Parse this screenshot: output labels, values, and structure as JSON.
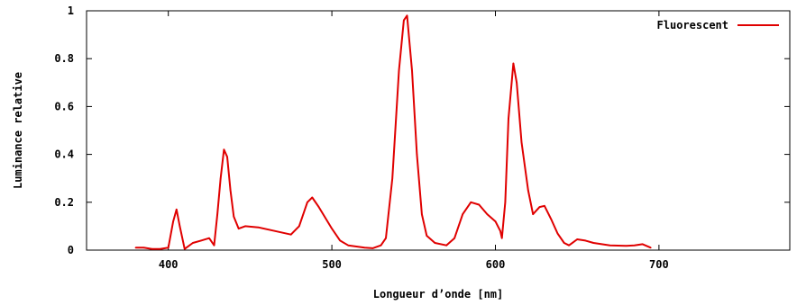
{
  "chart_data": {
    "type": "line",
    "title": "",
    "xlabel": "Longueur d’onde [nm]",
    "ylabel": "Luminance relative",
    "xlim": [
      350,
      780
    ],
    "ylim": [
      0,
      1
    ],
    "x_ticks": [
      400,
      500,
      600,
      700
    ],
    "y_ticks": [
      0,
      0.2,
      0.4,
      0.6,
      0.8,
      1
    ],
    "y_tick_labels": [
      "0",
      "0.2",
      "0.4",
      "0.6",
      "0.8",
      "1"
    ],
    "grid": false,
    "legend_position": "top-right",
    "series": [
      {
        "name": "Fluorescent",
        "color": "#e00000",
        "points": [
          [
            380,
            0.01
          ],
          [
            385,
            0.01
          ],
          [
            390,
            0.005
          ],
          [
            395,
            0.005
          ],
          [
            400,
            0.01
          ],
          [
            403,
            0.12
          ],
          [
            405,
            0.17
          ],
          [
            407,
            0.1
          ],
          [
            410,
            0.005
          ],
          [
            415,
            0.03
          ],
          [
            420,
            0.04
          ],
          [
            425,
            0.05
          ],
          [
            428,
            0.02
          ],
          [
            430,
            0.15
          ],
          [
            432,
            0.3
          ],
          [
            434,
            0.42
          ],
          [
            436,
            0.39
          ],
          [
            438,
            0.25
          ],
          [
            440,
            0.14
          ],
          [
            443,
            0.09
          ],
          [
            447,
            0.1
          ],
          [
            455,
            0.095
          ],
          [
            465,
            0.08
          ],
          [
            475,
            0.065
          ],
          [
            480,
            0.1
          ],
          [
            485,
            0.2
          ],
          [
            488,
            0.22
          ],
          [
            492,
            0.18
          ],
          [
            500,
            0.09
          ],
          [
            505,
            0.04
          ],
          [
            510,
            0.02
          ],
          [
            520,
            0.01
          ],
          [
            525,
            0.008
          ],
          [
            530,
            0.02
          ],
          [
            533,
            0.05
          ],
          [
            537,
            0.3
          ],
          [
            541,
            0.75
          ],
          [
            544,
            0.96
          ],
          [
            546,
            0.98
          ],
          [
            549,
            0.75
          ],
          [
            552,
            0.4
          ],
          [
            555,
            0.15
          ],
          [
            558,
            0.06
          ],
          [
            563,
            0.03
          ],
          [
            570,
            0.02
          ],
          [
            575,
            0.05
          ],
          [
            580,
            0.15
          ],
          [
            585,
            0.2
          ],
          [
            590,
            0.19
          ],
          [
            595,
            0.15
          ],
          [
            600,
            0.12
          ],
          [
            603,
            0.08
          ],
          [
            604,
            0.05
          ],
          [
            606,
            0.2
          ],
          [
            608,
            0.55
          ],
          [
            611,
            0.78
          ],
          [
            613,
            0.7
          ],
          [
            616,
            0.45
          ],
          [
            620,
            0.25
          ],
          [
            623,
            0.15
          ],
          [
            627,
            0.18
          ],
          [
            630,
            0.185
          ],
          [
            634,
            0.13
          ],
          [
            638,
            0.07
          ],
          [
            642,
            0.03
          ],
          [
            645,
            0.02
          ],
          [
            650,
            0.045
          ],
          [
            655,
            0.04
          ],
          [
            660,
            0.03
          ],
          [
            670,
            0.02
          ],
          [
            680,
            0.018
          ],
          [
            685,
            0.02
          ],
          [
            690,
            0.025
          ],
          [
            695,
            0.01
          ]
        ]
      }
    ]
  }
}
